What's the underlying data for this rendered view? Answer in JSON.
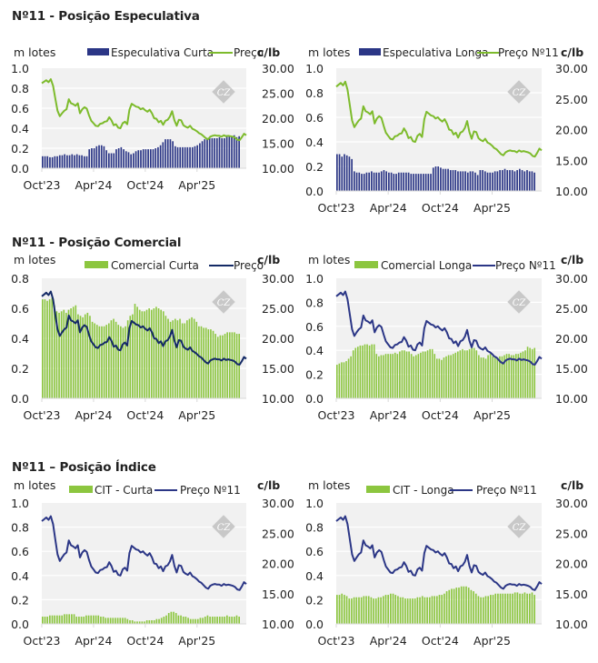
{
  "sections": [
    {
      "title": "Nº11 - Posição Especulativa"
    },
    {
      "title": "Nº11 - Posição Comercial"
    },
    {
      "title": "Nº11 – Posição Índice"
    }
  ],
  "colors": {
    "navy": "#2b3686",
    "dark_navy": "#142a66",
    "green": "#7dbb2c",
    "bar_green": "#8cc63f",
    "plot_bg": "#f1f1f1",
    "grid": "#ffffff",
    "watermark": "#c8c8c8"
  },
  "watermark": {
    "text": "CZ"
  },
  "price_series_cents_per_lb": [
    27.0,
    27.3,
    27.6,
    27.2,
    27.8,
    26.5,
    24.0,
    21.5,
    20.4,
    21.0,
    21.5,
    21.8,
    23.8,
    23.0,
    22.8,
    22.5,
    23.0,
    21.0,
    21.8,
    22.2,
    21.9,
    20.6,
    19.5,
    19.0,
    18.5,
    18.4,
    18.9,
    19.0,
    19.3,
    19.4,
    20.2,
    19.6,
    18.6,
    18.8,
    18.1,
    18.0,
    19.0,
    19.3,
    18.8,
    21.7,
    22.9,
    22.6,
    22.3,
    22.2,
    21.8,
    22.0,
    21.6,
    21.3,
    21.7,
    21.0,
    20.0,
    19.9,
    19.2,
    19.5,
    18.7,
    19.5,
    19.7,
    20.3,
    21.4,
    19.6,
    18.5,
    19.7,
    19.6,
    18.6,
    18.3,
    18.1,
    18.5,
    17.9,
    17.7,
    17.4,
    17.0,
    16.8,
    16.4,
    16.0,
    15.8,
    16.3,
    16.5,
    16.6,
    16.5,
    16.5,
    16.3,
    16.6,
    16.4,
    16.5,
    16.4,
    16.3,
    16.1,
    15.7,
    15.6,
    16.2,
    16.9,
    16.6
  ],
  "charts": [
    {
      "id": "especulativa-curta",
      "chart_data": {
        "type": "bar+line",
        "title": "Nº11 - Posição Especulativa (Curta)",
        "left_unit": "m lotes",
        "right_unit": "c/lb",
        "left_ylim": [
          0.0,
          1.0
        ],
        "left_ticks": [
          "0.0",
          "0.2",
          "0.4",
          "0.6",
          "0.8",
          "1.0"
        ],
        "right_ylim": [
          10.0,
          30.0
        ],
        "right_ticks": [
          "10.00",
          "15.00",
          "20.00",
          "25.00",
          "30.00"
        ],
        "x_ticks": [
          "Oct'23",
          "Apr'24",
          "Oct'24",
          "Apr'25"
        ],
        "legend": [
          {
            "name": "Especulativa Curta",
            "kind": "bar"
          },
          {
            "name": "Preço",
            "kind": "line"
          }
        ],
        "bar_color": "#2b3686",
        "line_color": "#7dbb2c",
        "bar_values": [
          0.12,
          0.12,
          0.12,
          0.11,
          0.11,
          0.12,
          0.12,
          0.13,
          0.13,
          0.14,
          0.13,
          0.13,
          0.14,
          0.13,
          0.14,
          0.13,
          0.13,
          0.12,
          0.12,
          0.19,
          0.2,
          0.2,
          0.22,
          0.23,
          0.23,
          0.22,
          0.18,
          0.15,
          0.15,
          0.15,
          0.19,
          0.2,
          0.21,
          0.19,
          0.17,
          0.16,
          0.14,
          0.15,
          0.17,
          0.18,
          0.18,
          0.19,
          0.19,
          0.19,
          0.19,
          0.19,
          0.2,
          0.21,
          0.23,
          0.26,
          0.29,
          0.29,
          0.29,
          0.27,
          0.22,
          0.21,
          0.21,
          0.21,
          0.21,
          0.21,
          0.21,
          0.21,
          0.22,
          0.23,
          0.25,
          0.27,
          0.29,
          0.3,
          0.3,
          0.3,
          0.3,
          0.3,
          0.31,
          0.3,
          0.3,
          0.33,
          0.32,
          0.32,
          0.33,
          0.31,
          0.32
        ],
        "price_series": "shared"
      }
    },
    {
      "id": "especulativa-longa",
      "chart_data": {
        "type": "bar+line",
        "title": "Nº11 - Posição Especulativa (Longa)",
        "left_unit": "m lotes",
        "right_unit": "c/lb",
        "left_ylim": [
          0.0,
          1.0
        ],
        "left_ticks": [
          "0.0",
          "0.2",
          "0.4",
          "0.6",
          "0.8",
          "1.0"
        ],
        "right_ylim": [
          10.0,
          30.0
        ],
        "right_ticks": [
          "10.00",
          "15.00",
          "20.00",
          "25.00",
          "30.00"
        ],
        "x_ticks": [
          "Oct'23",
          "Apr'24",
          "Oct'24",
          "Apr'25"
        ],
        "legend": [
          {
            "name": "Especulativa Longa",
            "kind": "bar"
          },
          {
            "name": "Preço Nº11",
            "kind": "line"
          }
        ],
        "bar_color": "#2b3686",
        "line_color": "#7dbb2c",
        "bar_values": [
          0.3,
          0.3,
          0.28,
          0.3,
          0.29,
          0.28,
          0.26,
          0.16,
          0.15,
          0.15,
          0.14,
          0.14,
          0.15,
          0.15,
          0.16,
          0.15,
          0.15,
          0.15,
          0.16,
          0.17,
          0.16,
          0.15,
          0.15,
          0.14,
          0.14,
          0.15,
          0.15,
          0.15,
          0.15,
          0.15,
          0.14,
          0.14,
          0.14,
          0.14,
          0.14,
          0.14,
          0.14,
          0.14,
          0.14,
          0.19,
          0.2,
          0.2,
          0.19,
          0.18,
          0.18,
          0.18,
          0.17,
          0.17,
          0.17,
          0.16,
          0.16,
          0.16,
          0.16,
          0.15,
          0.16,
          0.16,
          0.15,
          0.13,
          0.17,
          0.17,
          0.16,
          0.15,
          0.15,
          0.15,
          0.16,
          0.16,
          0.17,
          0.17,
          0.18,
          0.17,
          0.17,
          0.17,
          0.16,
          0.17,
          0.18,
          0.17,
          0.16,
          0.17,
          0.16,
          0.16,
          0.15
        ],
        "price_series": "shared"
      }
    },
    {
      "id": "comercial-curta",
      "chart_data": {
        "type": "bar+line",
        "title": "Nº11 - Posição Comercial (Curta)",
        "left_unit": "m lotes",
        "right_unit": "c/lb",
        "left_ylim": [
          0.0,
          0.8
        ],
        "left_ticks": [
          "0.0",
          "0.2",
          "0.4",
          "0.6",
          "0.8"
        ],
        "right_ylim": [
          10.0,
          30.0
        ],
        "right_ticks": [
          "10.00",
          "15.00",
          "20.00",
          "25.00",
          "30.00"
        ],
        "x_ticks": [
          "Oct'23",
          "Apr'24",
          "Oct'24",
          "Apr'25"
        ],
        "legend": [
          {
            "name": "Comercial Curta",
            "kind": "bar"
          },
          {
            "name": "Preço",
            "kind": "line"
          }
        ],
        "bar_color": "#8cc63f",
        "line_color": "#142a66",
        "bar_values": [
          0.66,
          0.66,
          0.65,
          0.66,
          0.67,
          0.62,
          0.58,
          0.57,
          0.58,
          0.59,
          0.57,
          0.59,
          0.6,
          0.61,
          0.62,
          0.56,
          0.55,
          0.54,
          0.56,
          0.57,
          0.55,
          0.51,
          0.5,
          0.49,
          0.48,
          0.48,
          0.48,
          0.49,
          0.5,
          0.52,
          0.53,
          0.51,
          0.49,
          0.48,
          0.47,
          0.48,
          0.52,
          0.55,
          0.56,
          0.63,
          0.61,
          0.59,
          0.58,
          0.58,
          0.59,
          0.6,
          0.59,
          0.6,
          0.61,
          0.6,
          0.59,
          0.58,
          0.55,
          0.53,
          0.51,
          0.52,
          0.53,
          0.52,
          0.53,
          0.5,
          0.5,
          0.52,
          0.53,
          0.54,
          0.53,
          0.51,
          0.48,
          0.48,
          0.47,
          0.47,
          0.46,
          0.46,
          0.45,
          0.43,
          0.41,
          0.42,
          0.42,
          0.43,
          0.44,
          0.44,
          0.44,
          0.44,
          0.43,
          0.43
        ],
        "price_series": "shared"
      }
    },
    {
      "id": "comercial-longa",
      "chart_data": {
        "type": "bar+line",
        "title": "Nº11 - Posição Comercial (Longa)",
        "left_unit": "m lotes",
        "right_unit": "c/lb",
        "left_ylim": [
          0.0,
          1.0
        ],
        "left_ticks": [
          "0.0",
          "0.2",
          "0.4",
          "0.6",
          "0.8",
          "1.0"
        ],
        "right_ylim": [
          10.0,
          30.0
        ],
        "right_ticks": [
          "10.00",
          "15.00",
          "20.00",
          "25.00",
          "30.00"
        ],
        "x_ticks": [
          "Oct'23",
          "Apr'24",
          "Oct'24",
          "Apr'25"
        ],
        "legend": [
          {
            "name": "Comercial Longa",
            "kind": "bar"
          },
          {
            "name": "Preço Nº11",
            "kind": "line"
          }
        ],
        "bar_color": "#8cc63f",
        "line_color": "#2b3686",
        "bar_values": [
          0.28,
          0.29,
          0.3,
          0.3,
          0.31,
          0.33,
          0.35,
          0.4,
          0.42,
          0.43,
          0.44,
          0.44,
          0.45,
          0.45,
          0.44,
          0.45,
          0.45,
          0.37,
          0.35,
          0.36,
          0.36,
          0.37,
          0.37,
          0.37,
          0.37,
          0.38,
          0.37,
          0.39,
          0.4,
          0.4,
          0.39,
          0.39,
          0.37,
          0.35,
          0.36,
          0.37,
          0.38,
          0.39,
          0.39,
          0.4,
          0.41,
          0.41,
          0.37,
          0.33,
          0.33,
          0.32,
          0.34,
          0.35,
          0.36,
          0.36,
          0.37,
          0.38,
          0.39,
          0.4,
          0.41,
          0.4,
          0.4,
          0.41,
          0.42,
          0.42,
          0.4,
          0.36,
          0.34,
          0.34,
          0.33,
          0.36,
          0.37,
          0.35,
          0.34,
          0.34,
          0.35,
          0.35,
          0.36,
          0.37,
          0.37,
          0.36,
          0.36,
          0.37,
          0.37,
          0.38,
          0.39,
          0.4,
          0.43,
          0.42,
          0.41,
          0.42
        ],
        "price_series": "shared"
      }
    },
    {
      "id": "cit-curta",
      "chart_data": {
        "type": "bar+line",
        "title": "Nº11 – Posição Índice (CIT Curta)",
        "left_unit": "m lotes",
        "right_unit": "c/lb",
        "left_ylim": [
          0.0,
          1.0
        ],
        "left_ticks": [
          "0.0",
          "0.2",
          "0.4",
          "0.6",
          "0.8",
          "1.0"
        ],
        "right_ylim": [
          10.0,
          30.0
        ],
        "right_ticks": [
          "10.00",
          "15.00",
          "20.00",
          "25.00",
          "30.00"
        ],
        "x_ticks": [
          "Oct'23",
          "Apr'24",
          "Oct'24",
          "Apr'25"
        ],
        "legend": [
          {
            "name": "CIT - Curta",
            "kind": "bar"
          },
          {
            "name": "Preço Nº11",
            "kind": "line"
          }
        ],
        "bar_color": "#8cc63f",
        "line_color": "#2b3686",
        "bar_values": [
          0.06,
          0.06,
          0.06,
          0.07,
          0.07,
          0.07,
          0.07,
          0.07,
          0.07,
          0.08,
          0.08,
          0.08,
          0.08,
          0.08,
          0.06,
          0.06,
          0.06,
          0.06,
          0.07,
          0.07,
          0.07,
          0.07,
          0.07,
          0.07,
          0.06,
          0.06,
          0.05,
          0.05,
          0.05,
          0.05,
          0.05,
          0.05,
          0.05,
          0.05,
          0.05,
          0.04,
          0.03,
          0.03,
          0.02,
          0.02,
          0.02,
          0.02,
          0.02,
          0.03,
          0.03,
          0.03,
          0.03,
          0.04,
          0.04,
          0.05,
          0.06,
          0.07,
          0.09,
          0.1,
          0.1,
          0.09,
          0.07,
          0.07,
          0.06,
          0.06,
          0.05,
          0.04,
          0.04,
          0.04,
          0.04,
          0.05,
          0.05,
          0.06,
          0.07,
          0.06,
          0.06,
          0.06,
          0.06,
          0.06,
          0.06,
          0.06,
          0.07,
          0.06,
          0.06,
          0.06,
          0.07,
          0.06
        ],
        "price_series": "shared"
      }
    },
    {
      "id": "cit-longa",
      "chart_data": {
        "type": "bar+line",
        "title": "Nº11 – Posição Índice (CIT Longa)",
        "left_unit": "m lotes",
        "right_unit": "c/lb",
        "left_ylim": [
          0.0,
          1.0
        ],
        "left_ticks": [
          "0.0",
          "0.2",
          "0.4",
          "0.6",
          "0.8",
          "1.0"
        ],
        "right_ylim": [
          10.0,
          30.0
        ],
        "right_ticks": [
          "10.00",
          "15.00",
          "20.00",
          "25.00",
          "30.00"
        ],
        "x_ticks": [
          "Oct'23",
          "Apr'24",
          "Oct'24",
          "Apr'25"
        ],
        "legend": [
          {
            "name": "CIT - Longa",
            "kind": "bar"
          },
          {
            "name": "Preço Nº11",
            "kind": "line"
          }
        ],
        "bar_color": "#8cc63f",
        "line_color": "#2b3686",
        "bar_values": [
          0.24,
          0.24,
          0.25,
          0.24,
          0.23,
          0.21,
          0.21,
          0.22,
          0.22,
          0.22,
          0.22,
          0.23,
          0.23,
          0.23,
          0.22,
          0.21,
          0.21,
          0.22,
          0.22,
          0.23,
          0.24,
          0.24,
          0.25,
          0.25,
          0.24,
          0.23,
          0.22,
          0.22,
          0.21,
          0.21,
          0.21,
          0.21,
          0.21,
          0.22,
          0.22,
          0.23,
          0.22,
          0.22,
          0.22,
          0.23,
          0.23,
          0.23,
          0.24,
          0.24,
          0.25,
          0.27,
          0.28,
          0.29,
          0.29,
          0.3,
          0.3,
          0.31,
          0.31,
          0.31,
          0.3,
          0.28,
          0.27,
          0.25,
          0.23,
          0.22,
          0.22,
          0.23,
          0.23,
          0.24,
          0.24,
          0.25,
          0.25,
          0.25,
          0.25,
          0.25,
          0.25,
          0.25,
          0.25,
          0.26,
          0.26,
          0.25,
          0.25,
          0.26,
          0.25,
          0.25,
          0.26,
          0.24
        ],
        "price_series": "shared"
      }
    }
  ]
}
